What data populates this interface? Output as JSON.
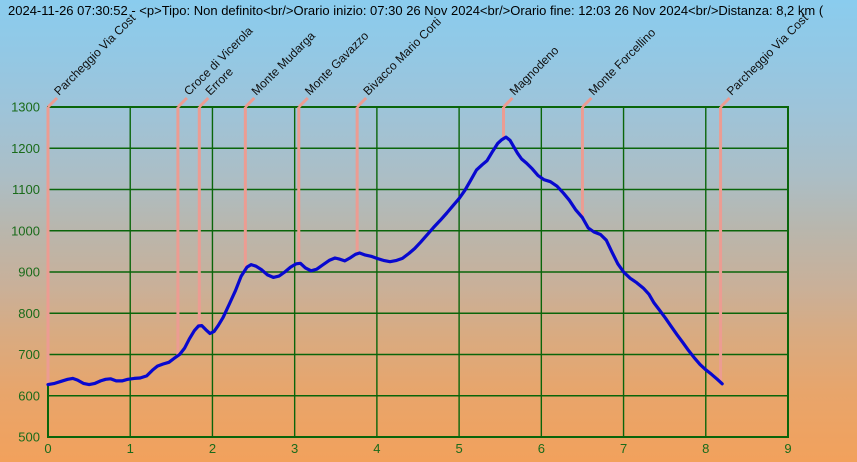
{
  "header": {
    "title": "2024-11-26 07:30:52 - <p>Tipo: Non definito<br/>Orario inizio: 07:30 26 Nov 2024<br/>Orario fine: 12:03 26 Nov 2024<br/>Distanza: 8,2 km ("
  },
  "colors": {
    "grid": "#0a650a",
    "tick_text": "#1a6b1a",
    "curve": "#0808cf",
    "waypoint_marker": "#ec9c92",
    "waypoint_text": "#101010",
    "title_text": "#000000",
    "sky_top": "#8accee",
    "ground_bottom": "#f2a15c"
  },
  "chart_data": {
    "type": "line",
    "title": "",
    "xlabel": "",
    "ylabel": "",
    "xlim": [
      0,
      9
    ],
    "ylim": [
      500,
      1300
    ],
    "grid": true,
    "x_ticks": [
      "0",
      "1",
      "2",
      "3",
      "4",
      "5",
      "6",
      "7",
      "8",
      "9"
    ],
    "y_ticks": [
      "500",
      "600",
      "700",
      "800",
      "900",
      "1000",
      "1100",
      "1200",
      "1300"
    ],
    "series": [
      {
        "name": "elevation-profile",
        "points": [
          [
            0.0,
            627
          ],
          [
            0.08,
            630
          ],
          [
            0.16,
            635
          ],
          [
            0.24,
            640
          ],
          [
            0.3,
            642
          ],
          [
            0.36,
            638
          ],
          [
            0.43,
            630
          ],
          [
            0.5,
            627
          ],
          [
            0.57,
            630
          ],
          [
            0.64,
            636
          ],
          [
            0.7,
            640
          ],
          [
            0.76,
            641
          ],
          [
            0.83,
            636
          ],
          [
            0.9,
            636
          ],
          [
            0.97,
            640
          ],
          [
            1.05,
            642
          ],
          [
            1.12,
            643
          ],
          [
            1.2,
            648
          ],
          [
            1.27,
            662
          ],
          [
            1.33,
            672
          ],
          [
            1.4,
            677
          ],
          [
            1.47,
            681
          ],
          [
            1.53,
            690
          ],
          [
            1.6,
            700
          ],
          [
            1.66,
            715
          ],
          [
            1.72,
            738
          ],
          [
            1.78,
            758
          ],
          [
            1.83,
            769
          ],
          [
            1.87,
            770
          ],
          [
            1.92,
            760
          ],
          [
            1.97,
            751
          ],
          [
            2.02,
            756
          ],
          [
            2.07,
            770
          ],
          [
            2.13,
            790
          ],
          [
            2.2,
            820
          ],
          [
            2.28,
            855
          ],
          [
            2.35,
            890
          ],
          [
            2.42,
            912
          ],
          [
            2.47,
            918
          ],
          [
            2.53,
            914
          ],
          [
            2.6,
            905
          ],
          [
            2.67,
            893
          ],
          [
            2.74,
            887
          ],
          [
            2.81,
            890
          ],
          [
            2.88,
            900
          ],
          [
            2.95,
            912
          ],
          [
            3.02,
            920
          ],
          [
            3.07,
            921
          ],
          [
            3.13,
            910
          ],
          [
            3.2,
            903
          ],
          [
            3.27,
            907
          ],
          [
            3.34,
            917
          ],
          [
            3.42,
            928
          ],
          [
            3.49,
            934
          ],
          [
            3.55,
            931
          ],
          [
            3.61,
            927
          ],
          [
            3.68,
            935
          ],
          [
            3.74,
            943
          ],
          [
            3.79,
            946
          ],
          [
            3.86,
            941
          ],
          [
            3.93,
            938
          ],
          [
            4.0,
            933
          ],
          [
            4.08,
            928
          ],
          [
            4.16,
            925
          ],
          [
            4.24,
            928
          ],
          [
            4.31,
            933
          ],
          [
            4.39,
            945
          ],
          [
            4.46,
            957
          ],
          [
            4.53,
            972
          ],
          [
            4.61,
            990
          ],
          [
            4.69,
            1008
          ],
          [
            4.77,
            1025
          ],
          [
            4.85,
            1043
          ],
          [
            4.93,
            1062
          ],
          [
            5.0,
            1078
          ],
          [
            5.07,
            1098
          ],
          [
            5.14,
            1122
          ],
          [
            5.21,
            1147
          ],
          [
            5.28,
            1160
          ],
          [
            5.34,
            1170
          ],
          [
            5.41,
            1193
          ],
          [
            5.47,
            1212
          ],
          [
            5.52,
            1221
          ],
          [
            5.57,
            1227
          ],
          [
            5.62,
            1219
          ],
          [
            5.66,
            1205
          ],
          [
            5.71,
            1188
          ],
          [
            5.76,
            1174
          ],
          [
            5.82,
            1164
          ],
          [
            5.89,
            1150
          ],
          [
            5.96,
            1134
          ],
          [
            6.03,
            1124
          ],
          [
            6.11,
            1119
          ],
          [
            6.19,
            1108
          ],
          [
            6.27,
            1091
          ],
          [
            6.34,
            1074
          ],
          [
            6.42,
            1050
          ],
          [
            6.5,
            1032
          ],
          [
            6.57,
            1007
          ],
          [
            6.64,
            997
          ],
          [
            6.72,
            991
          ],
          [
            6.79,
            977
          ],
          [
            6.86,
            948
          ],
          [
            6.93,
            920
          ],
          [
            7.0,
            900
          ],
          [
            7.08,
            885
          ],
          [
            7.16,
            874
          ],
          [
            7.24,
            861
          ],
          [
            7.31,
            846
          ],
          [
            7.37,
            825
          ],
          [
            7.44,
            807
          ],
          [
            7.51,
            788
          ],
          [
            7.58,
            768
          ],
          [
            7.65,
            748
          ],
          [
            7.72,
            729
          ],
          [
            7.79,
            710
          ],
          [
            7.86,
            692
          ],
          [
            7.93,
            676
          ],
          [
            8.0,
            663
          ],
          [
            8.07,
            652
          ],
          [
            8.14,
            640
          ],
          [
            8.2,
            629
          ]
        ]
      }
    ],
    "waypoints": [
      {
        "km": 0.0,
        "label": "Parcheggio Via Cost"
      },
      {
        "km": 1.58,
        "label": "Croce di Vicerola"
      },
      {
        "km": 1.84,
        "label": "Errore"
      },
      {
        "km": 2.4,
        "label": "Monte Mudarga"
      },
      {
        "km": 3.05,
        "label": "Monte Gavazzo"
      },
      {
        "km": 3.76,
        "label": "Bivacco Mario Corti"
      },
      {
        "km": 5.54,
        "label": "Magnodeno"
      },
      {
        "km": 6.5,
        "label": "Monte Forcellino"
      },
      {
        "km": 8.18,
        "label": "Parcheggio Via Cost"
      }
    ]
  }
}
